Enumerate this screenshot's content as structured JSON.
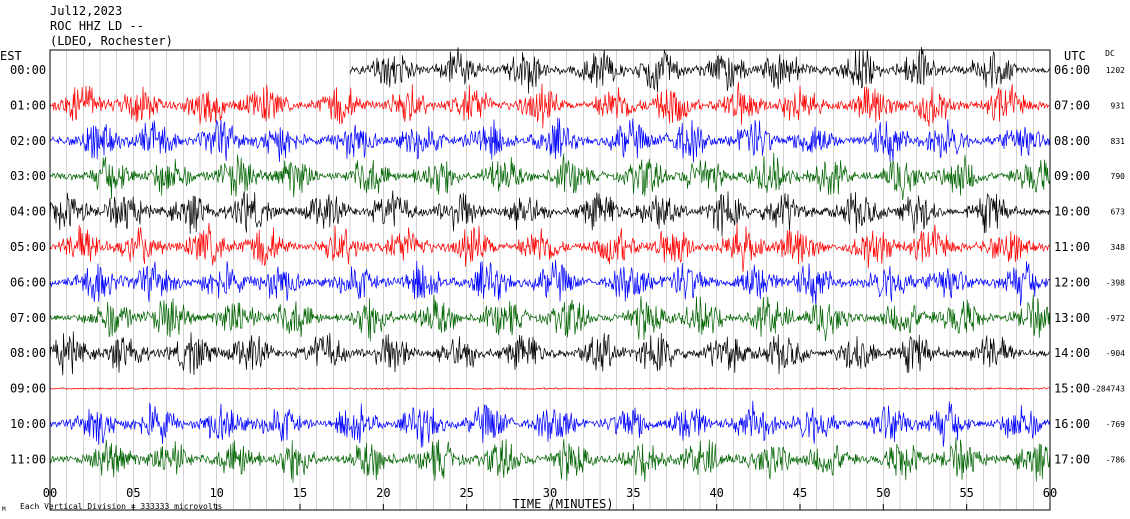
{
  "header": {
    "date": "Jul12,2023",
    "station": "ROC HHZ LD --",
    "network": "(LDEO, Rochester)"
  },
  "axes": {
    "left_zone": "EST",
    "right_zone": "UTC",
    "dc_header": "DC",
    "x_title": "TIME (MINUTES)",
    "x_ticks": [
      "00",
      "05",
      "10",
      "15",
      "20",
      "25",
      "30",
      "35",
      "40",
      "45",
      "50",
      "55",
      "60"
    ],
    "scale_note": "Each Vertical Division = 333333 microvolts",
    "corner_mark": "M"
  },
  "colors": {
    "black": "#000000",
    "red": "#ff0000",
    "blue": "#0000ff",
    "green": "#006400"
  },
  "chart_data": {
    "type": "helicorder",
    "title": "ROC HHZ LD --",
    "x_range_minutes": [
      0,
      60
    ],
    "rows": [
      {
        "est": "00:00",
        "utc": "06:00",
        "dc": "1202",
        "color": "black",
        "start_minute": 18,
        "activity": 1.0
      },
      {
        "est": "01:00",
        "utc": "07:00",
        "dc": "931",
        "color": "red",
        "start_minute": 0,
        "activity": 1.0
      },
      {
        "est": "02:00",
        "utc": "08:00",
        "dc": "831",
        "color": "blue",
        "start_minute": 0,
        "activity": 1.0
      },
      {
        "est": "03:00",
        "utc": "09:00",
        "dc": "790",
        "color": "green",
        "start_minute": 0,
        "activity": 1.0
      },
      {
        "est": "04:00",
        "utc": "10:00",
        "dc": "673",
        "color": "black",
        "start_minute": 0,
        "activity": 1.0
      },
      {
        "est": "05:00",
        "utc": "11:00",
        "dc": "348",
        "color": "red",
        "start_minute": 0,
        "activity": 1.0
      },
      {
        "est": "06:00",
        "utc": "12:00",
        "dc": "-398",
        "color": "blue",
        "start_minute": 0,
        "activity": 1.0
      },
      {
        "est": "07:00",
        "utc": "13:00",
        "dc": "-972",
        "color": "green",
        "start_minute": 0,
        "activity": 1.0
      },
      {
        "est": "08:00",
        "utc": "14:00",
        "dc": "-904",
        "color": "black",
        "start_minute": 0,
        "activity": 1.0
      },
      {
        "est": "09:00",
        "utc": "15:00",
        "dc": "-284743",
        "color": "red",
        "start_minute": 0,
        "activity": 0.0
      },
      {
        "est": "10:00",
        "utc": "16:00",
        "dc": "-769",
        "color": "blue",
        "start_minute": 0,
        "activity": 1.0
      },
      {
        "est": "11:00",
        "utc": "17:00",
        "dc": "-786",
        "color": "green",
        "start_minute": 0,
        "activity": 1.0
      }
    ]
  }
}
